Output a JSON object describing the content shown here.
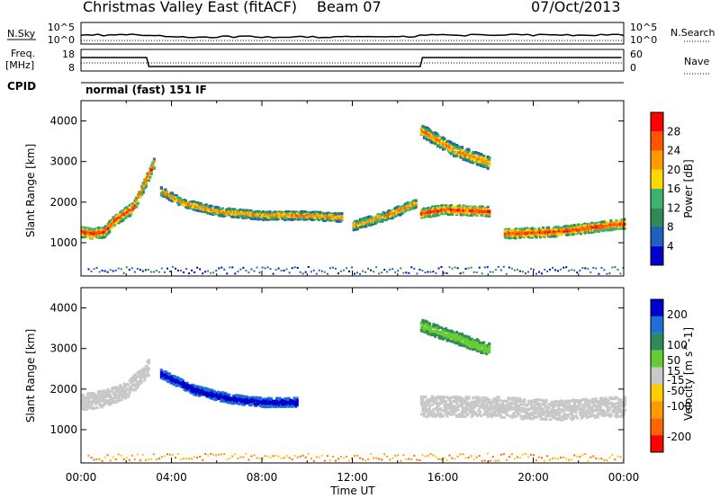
{
  "header": {
    "radar": "Christmas Valley East (fitACF)",
    "beam": "Beam 07",
    "date": "07/Oct/2013"
  },
  "strip_labels": {
    "nsky": "N.Sky",
    "nsearch": "N.Search",
    "freq": "Freq.",
    "freq_unit": "[MHz]",
    "nave": "Nave",
    "cpid": "CPID",
    "cpid_value": "normal (fast) 151 IF"
  },
  "strip_ticks": {
    "noise_left": [
      "10^5",
      "10^0"
    ],
    "noise_right": [
      "10^5",
      "10^0"
    ],
    "freq_left": [
      "18",
      "8"
    ],
    "nave_right": [
      "60",
      "0"
    ]
  },
  "colors": {
    "power_scale": [
      "#0000cc",
      "#1f5fbf",
      "#2e8b57",
      "#3cb371",
      "#ffd700",
      "#ff9900",
      "#ff5500",
      "#ff0000"
    ],
    "velocity_scale": [
      "#0000cc",
      "#1e6fd9",
      "#2e8b57",
      "#66cc33",
      "#c8c8c8",
      "#ffcc00",
      "#ff9900",
      "#ff6600",
      "#ff0000"
    ],
    "ground_scatter": "#c8c8c8"
  },
  "chart_data": [
    {
      "type": "heatmap",
      "panel": "power",
      "ylabel": "Slant Range [km]",
      "xlabel": "Time UT",
      "x_ticks": [
        "00:00",
        "04:00",
        "08:00",
        "12:00",
        "16:00",
        "20:00",
        "00:00"
      ],
      "xlim_hours": [
        0,
        24
      ],
      "y_ticks": [
        1000,
        2000,
        3000,
        4000
      ],
      "ylim_km": [
        180,
        4500
      ],
      "colorbar": {
        "label": "Power [dB]",
        "ticks": [
          4,
          8,
          12,
          16,
          20,
          24,
          28
        ],
        "range": [
          0,
          32
        ]
      },
      "features": [
        {
          "kind": "band",
          "t": [
            0,
            0.5,
            1,
            1.5,
            2.3,
            2.7,
            3.2
          ],
          "r": [
            1300,
            1250,
            1300,
            1600,
            1900,
            2400,
            3000
          ],
          "width_km": 260,
          "level": "red"
        },
        {
          "kind": "band",
          "t": [
            3.5,
            4.5,
            6,
            8,
            10,
            11.5
          ],
          "r": [
            2300,
            2000,
            1800,
            1700,
            1700,
            1650
          ],
          "width_km": 200,
          "level": "orange"
        },
        {
          "kind": "band",
          "t": [
            12,
            13.5,
            14.8
          ],
          "r": [
            1450,
            1700,
            2000
          ],
          "width_km": 220,
          "level": "orange"
        },
        {
          "kind": "band",
          "t": [
            15,
            16,
            18
          ],
          "r": [
            1750,
            1850,
            1800
          ],
          "width_km": 230,
          "level": "red"
        },
        {
          "kind": "band",
          "t": [
            18.7,
            21,
            24
          ],
          "r": [
            1250,
            1300,
            1500
          ],
          "width_km": 230,
          "level": "red"
        },
        {
          "kind": "band",
          "t": [
            15,
            16.5,
            18
          ],
          "r": [
            3800,
            3300,
            3000
          ],
          "width_km": 300,
          "level": "orange"
        }
      ]
    },
    {
      "type": "heatmap",
      "panel": "velocity",
      "ylabel": "Slant Range [km]",
      "xlabel": "Time UT",
      "x_ticks": [
        "00:00",
        "04:00",
        "08:00",
        "12:00",
        "16:00",
        "20:00",
        "00:00"
      ],
      "xlim_hours": [
        0,
        24
      ],
      "y_ticks": [
        1000,
        2000,
        3000,
        4000
      ],
      "ylim_km": [
        180,
        4500
      ],
      "colorbar": {
        "label": "Velocity [m s^-1]",
        "ticks": [
          200,
          100,
          50,
          15,
          -15,
          -50,
          -100,
          -200
        ],
        "range": [
          -250,
          250
        ]
      },
      "features": [
        {
          "kind": "band",
          "t": [
            0,
            1,
            2,
            3
          ],
          "r": [
            1700,
            1800,
            2000,
            2600
          ],
          "width_km": 400,
          "level": "ground"
        },
        {
          "kind": "band",
          "t": [
            3.5,
            5,
            6.5,
            8,
            9.5
          ],
          "r": [
            2400,
            2000,
            1800,
            1700,
            1700
          ],
          "width_km": 220,
          "level": "blue"
        },
        {
          "kind": "band",
          "t": [
            15,
            18,
            21,
            24
          ],
          "r": [
            1600,
            1600,
            1500,
            1600
          ],
          "width_km": 500,
          "level": "ground"
        },
        {
          "kind": "band",
          "t": [
            15,
            16.5,
            18
          ],
          "r": [
            3600,
            3300,
            3000
          ],
          "width_km": 300,
          "level": "green"
        }
      ]
    }
  ]
}
